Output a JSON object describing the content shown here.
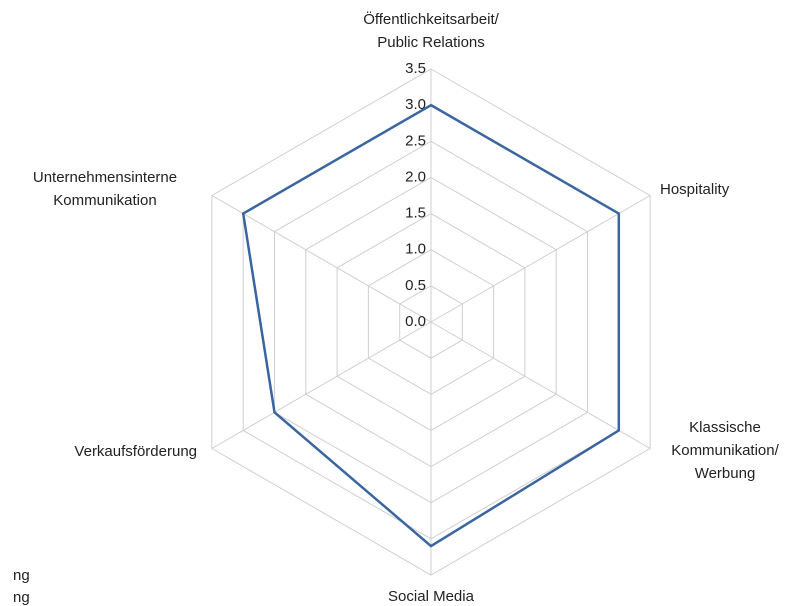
{
  "chart_data": {
    "type": "radar",
    "categories": [
      [
        "Öffentlichkeitsarbeit/",
        "Public Relations"
      ],
      [
        "Hospitality"
      ],
      [
        "Klassische",
        "Kommunikation/",
        "Werbung"
      ],
      [
        "Social Media"
      ],
      [
        "Verkaufsförderung"
      ],
      [
        "Unternehmensinterne",
        "Kommunikation"
      ]
    ],
    "values": [
      3.0,
      3.0,
      3.0,
      3.1,
      2.5,
      3.0
    ],
    "color": "#3a65a0",
    "ylim": [
      0,
      3.5
    ],
    "yticks": [
      {
        "value": 0,
        "label": "0.0"
      },
      {
        "value": 0.5,
        "label": "0.5"
      },
      {
        "value": 1,
        "label": "1.0"
      },
      {
        "value": 1.5,
        "label": "1.5"
      },
      {
        "value": 2,
        "label": "2.0"
      },
      {
        "value": 2.5,
        "label": "2.5"
      },
      {
        "value": 3,
        "label": "3.0"
      },
      {
        "value": 3.5,
        "label": "3.5"
      }
    ],
    "grid": true,
    "annotations": [
      "ng",
      "ng"
    ]
  }
}
